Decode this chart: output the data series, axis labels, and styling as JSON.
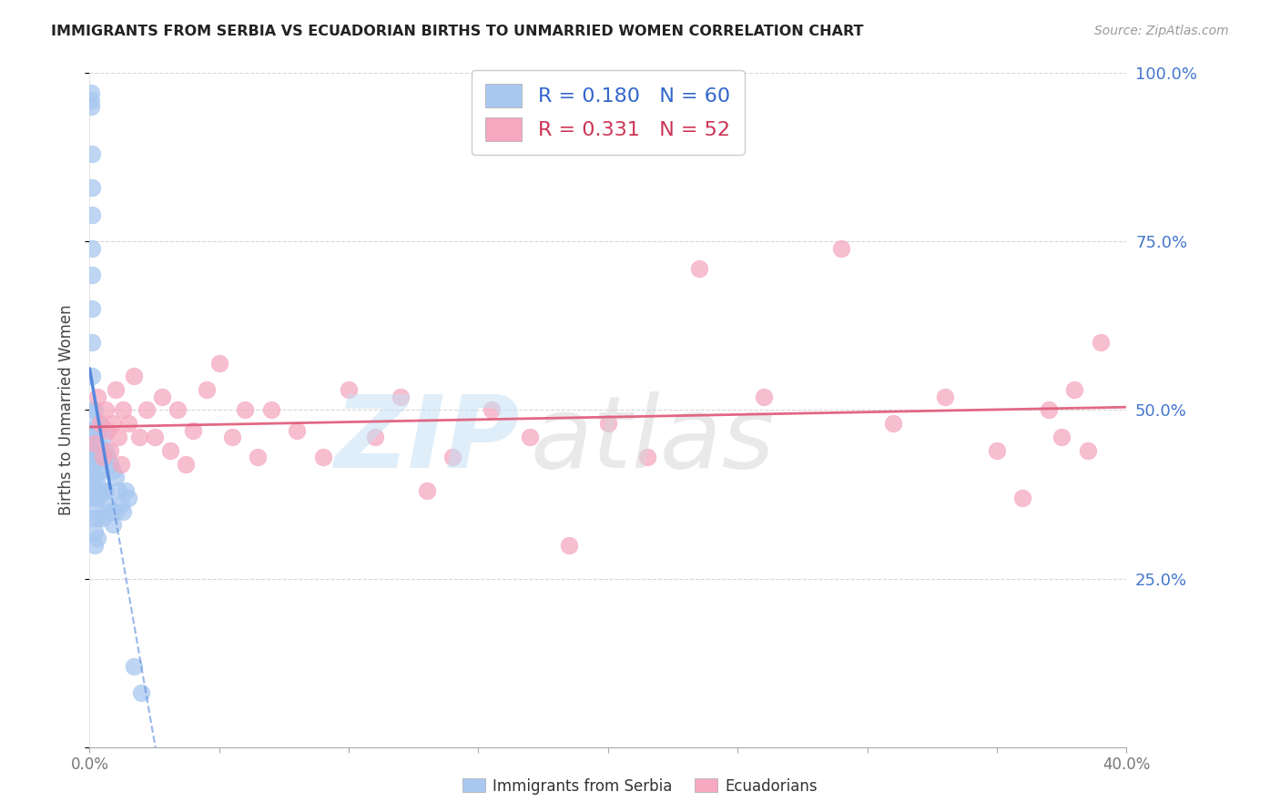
{
  "title": "IMMIGRANTS FROM SERBIA VS ECUADORIAN BIRTHS TO UNMARRIED WOMEN CORRELATION CHART",
  "source": "Source: ZipAtlas.com",
  "ylabel_left": "Births to Unmarried Women",
  "legend_labels": [
    "Immigrants from Serbia",
    "Ecuadorians"
  ],
  "R_serbia": 0.18,
  "N_serbia": 60,
  "R_ecuador": 0.331,
  "N_ecuador": 52,
  "blue_color": "#a8c8f0",
  "pink_color": "#f5a8c0",
  "trend_blue_color": "#5588dd",
  "trend_pink_color": "#e05878",
  "right_axis_color": "#4477cc",
  "title_color": "#222222",
  "source_color": "#999999",
  "grid_color": "#cccccc",
  "xlim": [
    0.0,
    0.4
  ],
  "ylim": [
    0.0,
    1.0
  ],
  "serbia_x": [
    0.0005,
    0.0005,
    0.0005,
    0.001,
    0.001,
    0.001,
    0.001,
    0.001,
    0.001,
    0.001,
    0.001,
    0.001,
    0.001,
    0.001,
    0.001,
    0.001,
    0.001,
    0.001,
    0.002,
    0.002,
    0.002,
    0.002,
    0.002,
    0.002,
    0.002,
    0.002,
    0.002,
    0.002,
    0.003,
    0.003,
    0.003,
    0.003,
    0.003,
    0.003,
    0.003,
    0.004,
    0.004,
    0.004,
    0.004,
    0.005,
    0.005,
    0.005,
    0.005,
    0.006,
    0.006,
    0.007,
    0.007,
    0.008,
    0.008,
    0.009,
    0.009,
    0.01,
    0.01,
    0.011,
    0.012,
    0.013,
    0.014,
    0.015,
    0.017,
    0.02
  ],
  "serbia_y": [
    0.97,
    0.96,
    0.95,
    0.88,
    0.83,
    0.79,
    0.74,
    0.7,
    0.65,
    0.6,
    0.55,
    0.5,
    0.47,
    0.45,
    0.43,
    0.41,
    0.39,
    0.37,
    0.5,
    0.47,
    0.44,
    0.42,
    0.4,
    0.38,
    0.36,
    0.34,
    0.32,
    0.3,
    0.48,
    0.45,
    0.43,
    0.4,
    0.37,
    0.34,
    0.31,
    0.47,
    0.44,
    0.41,
    0.38,
    0.46,
    0.43,
    0.38,
    0.34,
    0.44,
    0.38,
    0.43,
    0.36,
    0.42,
    0.35,
    0.41,
    0.33,
    0.4,
    0.35,
    0.38,
    0.36,
    0.35,
    0.38,
    0.37,
    0.12,
    0.08
  ],
  "ecuador_x": [
    0.002,
    0.003,
    0.004,
    0.005,
    0.006,
    0.007,
    0.008,
    0.009,
    0.01,
    0.011,
    0.012,
    0.013,
    0.015,
    0.017,
    0.019,
    0.022,
    0.025,
    0.028,
    0.031,
    0.034,
    0.037,
    0.04,
    0.045,
    0.05,
    0.055,
    0.06,
    0.065,
    0.07,
    0.08,
    0.09,
    0.1,
    0.11,
    0.12,
    0.13,
    0.14,
    0.155,
    0.17,
    0.185,
    0.2,
    0.215,
    0.235,
    0.26,
    0.29,
    0.31,
    0.33,
    0.35,
    0.36,
    0.37,
    0.375,
    0.38,
    0.385,
    0.39
  ],
  "ecuador_y": [
    0.45,
    0.52,
    0.48,
    0.43,
    0.5,
    0.47,
    0.44,
    0.48,
    0.53,
    0.46,
    0.42,
    0.5,
    0.48,
    0.55,
    0.46,
    0.5,
    0.46,
    0.52,
    0.44,
    0.5,
    0.42,
    0.47,
    0.53,
    0.57,
    0.46,
    0.5,
    0.43,
    0.5,
    0.47,
    0.43,
    0.53,
    0.46,
    0.52,
    0.38,
    0.43,
    0.5,
    0.46,
    0.3,
    0.48,
    0.43,
    0.71,
    0.52,
    0.74,
    0.48,
    0.52,
    0.44,
    0.37,
    0.5,
    0.46,
    0.53,
    0.44,
    0.6
  ]
}
